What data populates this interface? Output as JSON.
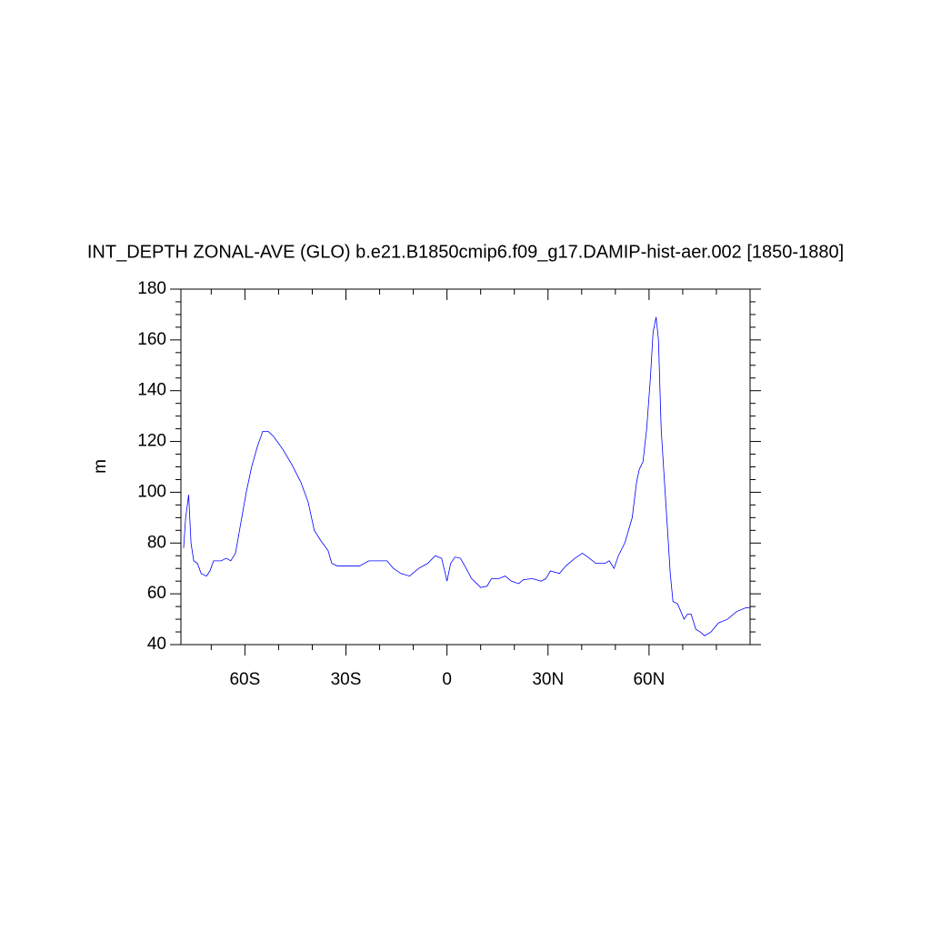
{
  "chart_data": {
    "type": "line",
    "title": "INT_DEPTH ZONAL-AVE (GLO) b.e21.B1850cmip6.f09_g17.DAMIP-hist-aer.002 [1850-1880]",
    "y_label": "m",
    "xlim": [
      -79,
      90
    ],
    "ylim": [
      40,
      180
    ],
    "xticks": [
      {
        "value": -60,
        "label": "60S"
      },
      {
        "value": -30,
        "label": "30S"
      },
      0,
      {
        "value": 30,
        "label": "30N"
      },
      {
        "value": 60,
        "label": "60N"
      }
    ],
    "yticks": [
      40,
      60,
      80,
      100,
      120,
      140,
      160,
      180
    ],
    "xminorticks": [
      -70,
      -50,
      -40,
      -20,
      -10,
      10,
      20,
      40,
      50,
      70,
      80
    ],
    "yminorticks": [
      45,
      50,
      55,
      65,
      70,
      75,
      85,
      90,
      95,
      105,
      110,
      115,
      125,
      130,
      135,
      145,
      150,
      155,
      165,
      170,
      175
    ],
    "x": [
      -78.2,
      -77.6,
      -76.7,
      -76.0,
      -75.2,
      -74.1,
      -73.0,
      -71.4,
      -70.4,
      -69.3,
      -67.1,
      -65.5,
      -64.2,
      -62.8,
      -61.2,
      -59.6,
      -58.0,
      -56.3,
      -54.7,
      -53.1,
      -51.5,
      -48.8,
      -46.1,
      -43.4,
      -41.2,
      -39.4,
      -37.5,
      -35.3,
      -34.2,
      -32.6,
      -29.9,
      -25.9,
      -23.2,
      -20.5,
      -17.8,
      -15.9,
      -13.7,
      -11.1,
      -8.4,
      -5.7,
      -3.5,
      -1.6,
      -0.5,
      0,
      1.1,
      2.4,
      4.0,
      5.7,
      7.3,
      8.9,
      10.0,
      11.9,
      13.2,
      15.4,
      17.3,
      19.1,
      21.3,
      22.6,
      25.3,
      28.0,
      29.4,
      30.7,
      33.4,
      35.3,
      38.0,
      40.2,
      42.3,
      44.2,
      46.9,
      48.2,
      49.6,
      50.9,
      52.8,
      55.0,
      56.3,
      57.1,
      58.2,
      59.3,
      60.4,
      61.2,
      62.1,
      62.8,
      63.6,
      64.4,
      65.5,
      66.3,
      67.1,
      68.5,
      70.4,
      71.4,
      72.5,
      73.9,
      75.2,
      76.5,
      78.4,
      80.6,
      83.3,
      86.0,
      88.7,
      90
    ],
    "series": [
      {
        "color": "#0000ff",
        "values": [
          78,
          90,
          99,
          80,
          73,
          72,
          68,
          67,
          69,
          73,
          73,
          74,
          73,
          76,
          88,
          100,
          110,
          118,
          124,
          124,
          122,
          117,
          111,
          104,
          96,
          85,
          81,
          77,
          72,
          71,
          71,
          71,
          73,
          73,
          73,
          70,
          68,
          67,
          70,
          72,
          75,
          74,
          68,
          65,
          72,
          74.5,
          74,
          70,
          66,
          64,
          62.5,
          63,
          66,
          66,
          67,
          65,
          64,
          65.5,
          66,
          65,
          66,
          69,
          68,
          71,
          74,
          76,
          74,
          72,
          72,
          73,
          70,
          75,
          80,
          90,
          104,
          109,
          112,
          125,
          145,
          163,
          169,
          160,
          125,
          108,
          85,
          68,
          57,
          56,
          50,
          52,
          52,
          46,
          45,
          43.5,
          45,
          48.5,
          50,
          53,
          54.5,
          54.5
        ]
      }
    ]
  }
}
